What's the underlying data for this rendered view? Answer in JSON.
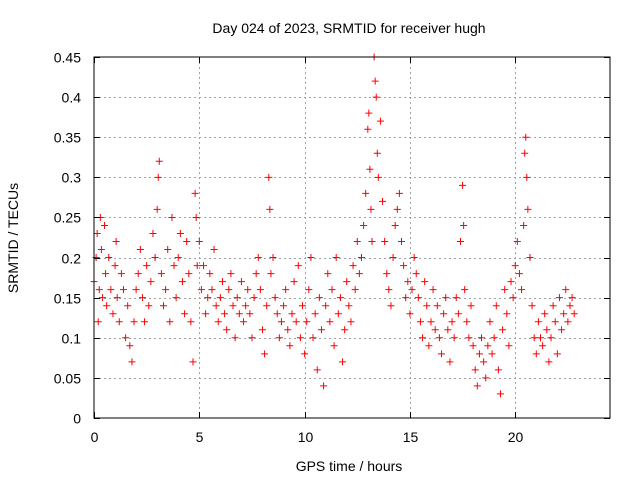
{
  "chart_data": {
    "type": "scatter",
    "title": "Day 024 of 2023, SRMTID for receiver hugh",
    "xlabel": "GPS time / hours",
    "ylabel": "SRMTID / TECUs",
    "xlim": [
      0,
      24.5
    ],
    "ylim": [
      0,
      0.45
    ],
    "xticks": [
      0,
      5,
      10,
      15,
      20
    ],
    "xtick_labels": [
      "0",
      "5",
      "10",
      "15",
      "20"
    ],
    "yticks": [
      0,
      0.05,
      0.1,
      0.15,
      0.2,
      0.25,
      0.3,
      0.35,
      0.4,
      0.45
    ],
    "ytick_labels": [
      "0",
      "0.05",
      "0.1",
      "0.15",
      "0.2",
      "0.25",
      "0.3",
      "0.35",
      "0.4",
      "0.45"
    ],
    "grid": true,
    "marker": "+",
    "color": "#ff0000",
    "series": [
      {
        "name": "SRMTID",
        "points": [
          [
            0.0,
            0.17
          ],
          [
            0.1,
            0.2
          ],
          [
            0.15,
            0.23
          ],
          [
            0.2,
            0.12
          ],
          [
            0.25,
            0.16
          ],
          [
            0.3,
            0.25
          ],
          [
            0.35,
            0.21
          ],
          [
            0.4,
            0.15
          ],
          [
            0.5,
            0.24
          ],
          [
            0.55,
            0.18
          ],
          [
            0.6,
            0.14
          ],
          [
            0.7,
            0.2
          ],
          [
            0.8,
            0.16
          ],
          [
            0.9,
            0.13
          ],
          [
            1.0,
            0.19
          ],
          [
            1.05,
            0.22
          ],
          [
            1.1,
            0.15
          ],
          [
            1.2,
            0.12
          ],
          [
            1.3,
            0.18
          ],
          [
            1.4,
            0.16
          ],
          [
            1.5,
            0.1
          ],
          [
            1.6,
            0.14
          ],
          [
            1.7,
            0.09
          ],
          [
            1.8,
            0.07
          ],
          [
            1.9,
            0.12
          ],
          [
            2.0,
            0.16
          ],
          [
            2.1,
            0.18
          ],
          [
            2.2,
            0.21
          ],
          [
            2.3,
            0.15
          ],
          [
            2.4,
            0.12
          ],
          [
            2.5,
            0.19
          ],
          [
            2.6,
            0.14
          ],
          [
            2.7,
            0.17
          ],
          [
            2.8,
            0.23
          ],
          [
            2.9,
            0.2
          ],
          [
            3.0,
            0.26
          ],
          [
            3.05,
            0.3
          ],
          [
            3.1,
            0.32
          ],
          [
            3.2,
            0.18
          ],
          [
            3.3,
            0.14
          ],
          [
            3.4,
            0.16
          ],
          [
            3.5,
            0.21
          ],
          [
            3.6,
            0.12
          ],
          [
            3.7,
            0.25
          ],
          [
            3.8,
            0.19
          ],
          [
            3.9,
            0.15
          ],
          [
            4.0,
            0.2
          ],
          [
            4.1,
            0.23
          ],
          [
            4.2,
            0.17
          ],
          [
            4.3,
            0.13
          ],
          [
            4.4,
            0.22
          ],
          [
            4.5,
            0.18
          ],
          [
            4.6,
            0.12
          ],
          [
            4.7,
            0.07
          ],
          [
            4.8,
            0.28
          ],
          [
            4.85,
            0.25
          ],
          [
            4.9,
            0.19
          ],
          [
            5.0,
            0.22
          ],
          [
            5.1,
            0.16
          ],
          [
            5.2,
            0.19
          ],
          [
            5.3,
            0.13
          ],
          [
            5.4,
            0.15
          ],
          [
            5.5,
            0.18
          ],
          [
            5.6,
            0.16
          ],
          [
            5.7,
            0.21
          ],
          [
            5.8,
            0.14
          ],
          [
            5.9,
            0.12
          ],
          [
            6.0,
            0.15
          ],
          [
            6.1,
            0.17
          ],
          [
            6.2,
            0.13
          ],
          [
            6.3,
            0.11
          ],
          [
            6.4,
            0.16
          ],
          [
            6.5,
            0.18
          ],
          [
            6.6,
            0.14
          ],
          [
            6.7,
            0.1
          ],
          [
            6.8,
            0.15
          ],
          [
            6.9,
            0.13
          ],
          [
            7.0,
            0.17
          ],
          [
            7.1,
            0.12
          ],
          [
            7.2,
            0.14
          ],
          [
            7.3,
            0.16
          ],
          [
            7.4,
            0.13
          ],
          [
            7.5,
            0.1
          ],
          [
            7.6,
            0.15
          ],
          [
            7.7,
            0.18
          ],
          [
            7.8,
            0.2
          ],
          [
            7.9,
            0.16
          ],
          [
            8.0,
            0.11
          ],
          [
            8.1,
            0.08
          ],
          [
            8.2,
            0.14
          ],
          [
            8.3,
            0.3
          ],
          [
            8.35,
            0.26
          ],
          [
            8.4,
            0.18
          ],
          [
            8.5,
            0.2
          ],
          [
            8.6,
            0.15
          ],
          [
            8.7,
            0.13
          ],
          [
            8.8,
            0.1
          ],
          [
            8.9,
            0.12
          ],
          [
            9.0,
            0.14
          ],
          [
            9.1,
            0.16
          ],
          [
            9.2,
            0.11
          ],
          [
            9.3,
            0.09
          ],
          [
            9.4,
            0.13
          ],
          [
            9.5,
            0.17
          ],
          [
            9.6,
            0.12
          ],
          [
            9.7,
            0.19
          ],
          [
            9.8,
            0.1
          ],
          [
            9.9,
            0.14
          ],
          [
            10.0,
            0.08
          ],
          [
            10.1,
            0.12
          ],
          [
            10.2,
            0.16
          ],
          [
            10.3,
            0.2
          ],
          [
            10.4,
            0.1
          ],
          [
            10.5,
            0.13
          ],
          [
            10.6,
            0.06
          ],
          [
            10.7,
            0.15
          ],
          [
            10.8,
            0.11
          ],
          [
            10.9,
            0.04
          ],
          [
            11.0,
            0.14
          ],
          [
            11.1,
            0.18
          ],
          [
            11.2,
            0.12
          ],
          [
            11.3,
            0.16
          ],
          [
            11.4,
            0.09
          ],
          [
            11.5,
            0.2
          ],
          [
            11.6,
            0.13
          ],
          [
            11.7,
            0.15
          ],
          [
            11.8,
            0.07
          ],
          [
            11.9,
            0.11
          ],
          [
            12.0,
            0.17
          ],
          [
            12.1,
            0.14
          ],
          [
            12.2,
            0.12
          ],
          [
            12.3,
            0.19
          ],
          [
            12.4,
            0.16
          ],
          [
            12.5,
            0.22
          ],
          [
            12.6,
            0.18
          ],
          [
            12.7,
            0.2
          ],
          [
            12.8,
            0.24
          ],
          [
            12.9,
            0.28
          ],
          [
            13.0,
            0.36
          ],
          [
            13.05,
            0.38
          ],
          [
            13.1,
            0.31
          ],
          [
            13.15,
            0.26
          ],
          [
            13.2,
            0.22
          ],
          [
            13.3,
            0.45
          ],
          [
            13.35,
            0.42
          ],
          [
            13.4,
            0.4
          ],
          [
            13.45,
            0.33
          ],
          [
            13.5,
            0.3
          ],
          [
            13.6,
            0.37
          ],
          [
            13.7,
            0.27
          ],
          [
            13.8,
            0.22
          ],
          [
            13.9,
            0.18
          ],
          [
            14.0,
            0.16
          ],
          [
            14.1,
            0.14
          ],
          [
            14.2,
            0.2
          ],
          [
            14.3,
            0.24
          ],
          [
            14.4,
            0.26
          ],
          [
            14.5,
            0.28
          ],
          [
            14.6,
            0.22
          ],
          [
            14.7,
            0.19
          ],
          [
            14.8,
            0.15
          ],
          [
            14.9,
            0.17
          ],
          [
            15.0,
            0.13
          ],
          [
            15.1,
            0.16
          ],
          [
            15.2,
            0.2
          ],
          [
            15.3,
            0.18
          ],
          [
            15.4,
            0.15
          ],
          [
            15.5,
            0.12
          ],
          [
            15.6,
            0.1
          ],
          [
            15.7,
            0.17
          ],
          [
            15.8,
            0.14
          ],
          [
            15.9,
            0.09
          ],
          [
            16.0,
            0.12
          ],
          [
            16.1,
            0.16
          ],
          [
            16.2,
            0.11
          ],
          [
            16.3,
            0.14
          ],
          [
            16.4,
            0.1
          ],
          [
            16.5,
            0.08
          ],
          [
            16.6,
            0.13
          ],
          [
            16.7,
            0.15
          ],
          [
            16.8,
            0.11
          ],
          [
            16.9,
            0.07
          ],
          [
            17.0,
            0.12
          ],
          [
            17.1,
            0.1
          ],
          [
            17.2,
            0.15
          ],
          [
            17.3,
            0.13
          ],
          [
            17.4,
            0.22
          ],
          [
            17.5,
            0.29
          ],
          [
            17.55,
            0.24
          ],
          [
            17.6,
            0.16
          ],
          [
            17.7,
            0.12
          ],
          [
            17.8,
            0.1
          ],
          [
            17.9,
            0.14
          ],
          [
            18.0,
            0.09
          ],
          [
            18.1,
            0.06
          ],
          [
            18.2,
            0.04
          ],
          [
            18.3,
            0.08
          ],
          [
            18.4,
            0.1
          ],
          [
            18.5,
            0.07
          ],
          [
            18.6,
            0.05
          ],
          [
            18.7,
            0.09
          ],
          [
            18.8,
            0.12
          ],
          [
            18.9,
            0.08
          ],
          [
            19.0,
            0.1
          ],
          [
            19.1,
            0.14
          ],
          [
            19.2,
            0.06
          ],
          [
            19.3,
            0.03
          ],
          [
            19.4,
            0.11
          ],
          [
            19.5,
            0.16
          ],
          [
            19.6,
            0.13
          ],
          [
            19.7,
            0.09
          ],
          [
            19.8,
            0.17
          ],
          [
            19.9,
            0.15
          ],
          [
            20.0,
            0.19
          ],
          [
            20.1,
            0.22
          ],
          [
            20.2,
            0.18
          ],
          [
            20.3,
            0.16
          ],
          [
            20.4,
            0.24
          ],
          [
            20.45,
            0.33
          ],
          [
            20.5,
            0.35
          ],
          [
            20.55,
            0.3
          ],
          [
            20.6,
            0.26
          ],
          [
            20.7,
            0.2
          ],
          [
            20.8,
            0.14
          ],
          [
            20.9,
            0.1
          ],
          [
            21.0,
            0.08
          ],
          [
            21.1,
            0.12
          ],
          [
            21.2,
            0.1
          ],
          [
            21.3,
            0.09
          ],
          [
            21.4,
            0.13
          ],
          [
            21.5,
            0.11
          ],
          [
            21.6,
            0.07
          ],
          [
            21.7,
            0.1
          ],
          [
            21.8,
            0.14
          ],
          [
            21.9,
            0.12
          ],
          [
            22.0,
            0.08
          ],
          [
            22.1,
            0.15
          ],
          [
            22.2,
            0.11
          ],
          [
            22.3,
            0.13
          ],
          [
            22.4,
            0.16
          ],
          [
            22.5,
            0.12
          ],
          [
            22.6,
            0.14
          ],
          [
            22.7,
            0.15
          ],
          [
            22.8,
            0.13
          ]
        ]
      }
    ]
  }
}
